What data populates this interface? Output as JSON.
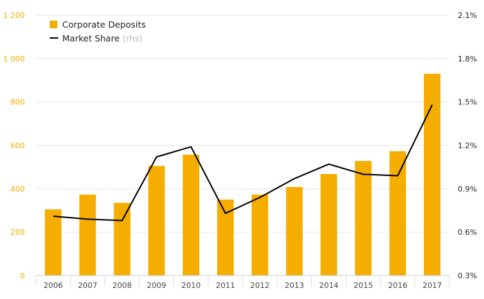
{
  "chart_data": {
    "type": "bar",
    "categories": [
      "2006",
      "2007",
      "2008",
      "2009",
      "2010",
      "2011",
      "2012",
      "2013",
      "2014",
      "2015",
      "2016",
      "2017"
    ],
    "series": [
      {
        "name": "Corporate Deposits",
        "type": "bar",
        "axis": "left",
        "color": "#f5ae00",
        "values": [
          305,
          373,
          335,
          505,
          557,
          350,
          373,
          408,
          468,
          528,
          573,
          930
        ]
      },
      {
        "name": "Market Share",
        "name_suffix": "(rhs)",
        "type": "line",
        "axis": "right",
        "color": "#000000",
        "values": [
          0.71,
          0.69,
          0.68,
          1.12,
          1.19,
          0.73,
          0.84,
          0.97,
          1.07,
          1.0,
          0.99,
          1.48
        ]
      }
    ],
    "y_left": {
      "range": [
        0,
        1200
      ],
      "ticks": [
        0,
        200,
        400,
        600,
        800,
        1000,
        1200
      ],
      "tick_labels": [
        "0",
        "200",
        "400",
        "600",
        "800",
        "1 000",
        "1 200"
      ]
    },
    "y_right": {
      "range": [
        0.3,
        2.1
      ],
      "ticks": [
        0.3,
        0.6,
        0.9,
        1.2,
        1.5,
        1.8,
        2.1
      ],
      "tick_labels": [
        "0.3%",
        "0.6%",
        "0.9%",
        "1.2%",
        "1.5%",
        "1.8%",
        "2.1%"
      ]
    },
    "title": "",
    "xlabel": "",
    "ylabel": "",
    "grid": true,
    "legend_position": "top-left",
    "colors": {
      "accent": "#f5ae00",
      "line": "#000000",
      "grid": "#e6e6e6",
      "rhs_suffix": "#b8b8b8"
    }
  }
}
